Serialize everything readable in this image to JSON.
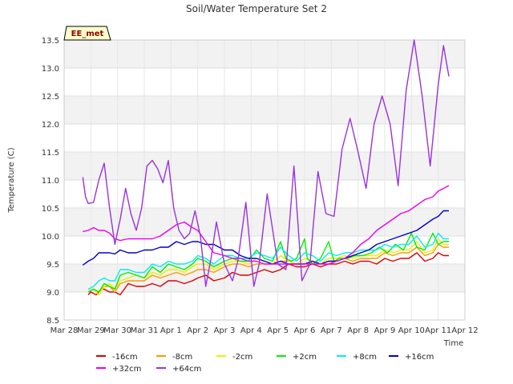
{
  "chart_data": {
    "type": "line",
    "title": "Soil/Water Temperature Set 2",
    "xlabel": "Time",
    "ylabel": "Temperature (C)",
    "badge": "EE_met",
    "xlim": [
      0,
      15
    ],
    "ylim": [
      8.5,
      13.5
    ],
    "x_ticks": [
      {
        "value": 0,
        "label": "Mar 28"
      },
      {
        "value": 1,
        "label": "Mar 29"
      },
      {
        "value": 2,
        "label": "Mar 30"
      },
      {
        "value": 3,
        "label": "Mar 31"
      },
      {
        "value": 4,
        "label": "Apr 1"
      },
      {
        "value": 5,
        "label": "Apr 2"
      },
      {
        "value": 6,
        "label": "Apr 3"
      },
      {
        "value": 7,
        "label": "Apr 4"
      },
      {
        "value": 8,
        "label": "Apr 5"
      },
      {
        "value": 9,
        "label": "Apr 6"
      },
      {
        "value": 10,
        "label": "Apr 7"
      },
      {
        "value": 11,
        "label": "Apr 8"
      },
      {
        "value": 12,
        "label": "Apr 9"
      },
      {
        "value": 13,
        "label": "Apr 10"
      },
      {
        "value": 14,
        "label": "Apr 11"
      },
      {
        "value": 15,
        "label": "Apr 12"
      }
    ],
    "y_ticks": [
      8.5,
      9.0,
      9.5,
      10.0,
      10.5,
      11.0,
      11.5,
      12.0,
      12.5,
      13.0,
      13.5
    ],
    "grid": true,
    "legend_position": "bottom",
    "series": [
      {
        "name": "-16cm",
        "color": "#dd0000",
        "x": [
          0.9,
          1.0,
          1.2,
          1.4,
          1.5,
          1.7,
          1.9,
          2.1,
          2.4,
          2.7,
          3.0,
          3.3,
          3.6,
          3.9,
          4.2,
          4.5,
          4.8,
          5.0,
          5.3,
          5.6,
          6.0,
          6.3,
          6.6,
          6.9,
          7.2,
          7.5,
          7.8,
          8.1,
          8.4,
          8.7,
          9.0,
          9.3,
          9.6,
          9.9,
          10.2,
          10.5,
          10.8,
          11.1,
          11.4,
          11.7,
          12.0,
          12.3,
          12.6,
          12.9,
          13.2,
          13.5,
          13.8,
          14.0,
          14.2,
          14.4
        ],
        "y": [
          8.95,
          9.0,
          8.95,
          9.05,
          9.05,
          9.0,
          9.0,
          8.95,
          9.15,
          9.1,
          9.1,
          9.15,
          9.1,
          9.2,
          9.2,
          9.15,
          9.2,
          9.25,
          9.3,
          9.2,
          9.25,
          9.35,
          9.3,
          9.3,
          9.35,
          9.4,
          9.35,
          9.4,
          9.5,
          9.45,
          9.45,
          9.5,
          9.45,
          9.5,
          9.5,
          9.55,
          9.5,
          9.55,
          9.55,
          9.5,
          9.6,
          9.55,
          9.6,
          9.6,
          9.7,
          9.55,
          9.6,
          9.7,
          9.65,
          9.65
        ]
      },
      {
        "name": "-8cm",
        "color": "#ff9900",
        "x": [
          0.9,
          1.1,
          1.3,
          1.5,
          1.7,
          1.9,
          2.1,
          2.4,
          2.7,
          3.0,
          3.3,
          3.6,
          3.9,
          4.2,
          4.5,
          4.8,
          5.0,
          5.3,
          5.6,
          6.0,
          6.3,
          6.6,
          6.9,
          7.2,
          7.5,
          7.8,
          8.1,
          8.4,
          8.7,
          9.0,
          9.3,
          9.6,
          9.9,
          10.2,
          10.5,
          10.8,
          11.1,
          11.4,
          11.7,
          12.0,
          12.3,
          12.6,
          12.9,
          13.2,
          13.5,
          13.8,
          14.0,
          14.2,
          14.4
        ],
        "y": [
          9.0,
          9.05,
          9.0,
          9.1,
          9.1,
          9.0,
          9.15,
          9.2,
          9.2,
          9.2,
          9.3,
          9.25,
          9.3,
          9.35,
          9.3,
          9.35,
          9.4,
          9.4,
          9.35,
          9.45,
          9.5,
          9.5,
          9.45,
          9.5,
          9.5,
          9.5,
          9.55,
          9.55,
          9.5,
          9.5,
          9.55,
          9.5,
          9.55,
          9.55,
          9.6,
          9.55,
          9.6,
          9.6,
          9.6,
          9.7,
          9.65,
          9.7,
          9.7,
          9.8,
          9.65,
          9.7,
          9.85,
          9.8,
          9.8
        ]
      },
      {
        "name": "-2cm",
        "color": "#eeee00",
        "x": [
          0.9,
          1.1,
          1.3,
          1.5,
          1.7,
          1.9,
          2.1,
          2.4,
          2.7,
          3.0,
          3.3,
          3.6,
          3.9,
          4.2,
          4.5,
          4.8,
          5.0,
          5.3,
          5.6,
          6.0,
          6.3,
          6.6,
          6.9,
          7.2,
          7.5,
          7.8,
          8.1,
          8.4,
          8.7,
          9.0,
          9.3,
          9.6,
          9.9,
          10.2,
          10.5,
          10.8,
          11.1,
          11.4,
          11.7,
          12.0,
          12.3,
          12.6,
          12.9,
          13.2,
          13.5,
          13.8,
          14.0,
          14.2,
          14.4
        ],
        "y": [
          9.0,
          9.05,
          8.95,
          9.1,
          9.15,
          9.05,
          9.2,
          9.25,
          9.3,
          9.25,
          9.35,
          9.3,
          9.4,
          9.4,
          9.35,
          9.45,
          9.5,
          9.5,
          9.4,
          9.5,
          9.55,
          9.55,
          9.5,
          9.6,
          9.55,
          9.5,
          9.65,
          9.55,
          9.5,
          9.6,
          9.55,
          9.5,
          9.6,
          9.6,
          9.65,
          9.6,
          9.65,
          9.65,
          9.65,
          9.75,
          9.7,
          9.75,
          9.75,
          9.9,
          9.7,
          9.75,
          9.95,
          9.85,
          9.85
        ]
      },
      {
        "name": "+2cm",
        "color": "#00ee00",
        "x": [
          0.9,
          1.1,
          1.3,
          1.5,
          1.7,
          1.9,
          2.1,
          2.4,
          2.7,
          3.0,
          3.3,
          3.6,
          3.9,
          4.2,
          4.5,
          4.8,
          5.0,
          5.3,
          5.6,
          6.0,
          6.3,
          6.6,
          6.9,
          7.2,
          7.5,
          7.8,
          8.1,
          8.3,
          8.5,
          8.7,
          9.0,
          9.1,
          9.3,
          9.6,
          9.9,
          10.1,
          10.3,
          10.6,
          10.9,
          11.2,
          11.5,
          11.8,
          12.1,
          12.4,
          12.7,
          13.0,
          13.2,
          13.5,
          13.8,
          14.0,
          14.2,
          14.4
        ],
        "y": [
          9.0,
          9.05,
          9.0,
          9.15,
          9.1,
          9.05,
          9.3,
          9.35,
          9.3,
          9.25,
          9.45,
          9.35,
          9.5,
          9.45,
          9.4,
          9.5,
          9.6,
          9.55,
          9.45,
          9.55,
          9.6,
          9.55,
          9.55,
          9.75,
          9.6,
          9.55,
          9.9,
          9.6,
          9.55,
          9.6,
          9.95,
          9.6,
          9.5,
          9.6,
          9.9,
          9.55,
          9.6,
          9.6,
          9.65,
          9.65,
          9.7,
          9.8,
          9.7,
          9.85,
          9.75,
          10.05,
          9.8,
          9.75,
          10.05,
          9.85,
          9.9,
          9.9
        ]
      },
      {
        "name": "+8cm",
        "color": "#00eeee",
        "x": [
          0.9,
          1.1,
          1.3,
          1.5,
          1.7,
          1.9,
          2.1,
          2.4,
          2.7,
          3.0,
          3.3,
          3.6,
          3.9,
          4.2,
          4.5,
          4.8,
          5.0,
          5.3,
          5.6,
          6.0,
          6.3,
          6.6,
          6.9,
          7.2,
          7.5,
          7.8,
          8.1,
          8.4,
          8.7,
          9.0,
          9.3,
          9.6,
          9.9,
          10.2,
          10.5,
          10.8,
          11.1,
          11.4,
          11.7,
          12.0,
          12.3,
          12.6,
          12.9,
          13.2,
          13.5,
          13.8,
          14.0,
          14.2,
          14.4
        ],
        "y": [
          9.05,
          9.1,
          9.2,
          9.25,
          9.2,
          9.2,
          9.4,
          9.4,
          9.35,
          9.35,
          9.5,
          9.45,
          9.55,
          9.5,
          9.5,
          9.55,
          9.65,
          9.6,
          9.5,
          9.65,
          9.65,
          9.6,
          9.6,
          9.7,
          9.65,
          9.6,
          9.8,
          9.65,
          9.55,
          9.7,
          9.65,
          9.55,
          9.7,
          9.65,
          9.7,
          9.7,
          9.75,
          9.75,
          9.75,
          9.85,
          9.8,
          9.85,
          9.85,
          10.0,
          9.8,
          9.85,
          10.05,
          9.95,
          9.95
        ]
      },
      {
        "name": "+16cm",
        "color": "#0000cc",
        "x": [
          0.7,
          0.9,
          1.1,
          1.3,
          1.5,
          1.7,
          1.9,
          2.1,
          2.4,
          2.7,
          3.0,
          3.3,
          3.6,
          3.9,
          4.2,
          4.5,
          4.8,
          5.0,
          5.3,
          5.6,
          6.0,
          6.3,
          6.6,
          6.9,
          7.2,
          7.5,
          7.8,
          8.1,
          8.4,
          8.7,
          9.0,
          9.3,
          9.6,
          9.9,
          10.2,
          10.5,
          10.8,
          11.1,
          11.4,
          11.7,
          12.0,
          12.3,
          12.6,
          12.9,
          13.2,
          13.5,
          13.8,
          14.0,
          14.2,
          14.4
        ],
        "y": [
          9.48,
          9.55,
          9.6,
          9.7,
          9.7,
          9.7,
          9.68,
          9.75,
          9.7,
          9.7,
          9.75,
          9.75,
          9.8,
          9.8,
          9.9,
          9.85,
          9.9,
          9.9,
          9.85,
          9.85,
          9.75,
          9.75,
          9.65,
          9.6,
          9.6,
          9.55,
          9.5,
          9.55,
          9.5,
          9.5,
          9.5,
          9.55,
          9.5,
          9.55,
          9.55,
          9.6,
          9.65,
          9.7,
          9.75,
          9.85,
          9.9,
          9.95,
          10.0,
          10.05,
          10.1,
          10.2,
          10.3,
          10.35,
          10.45,
          10.45
        ]
      },
      {
        "name": "+32cm",
        "color": "#ee00ee",
        "x": [
          0.7,
          0.9,
          1.1,
          1.3,
          1.5,
          1.7,
          1.9,
          2.1,
          2.4,
          2.7,
          3.0,
          3.3,
          3.6,
          3.9,
          4.2,
          4.5,
          4.8,
          5.0,
          5.3,
          5.6,
          6.0,
          6.3,
          6.6,
          6.9,
          7.2,
          7.5,
          7.8,
          8.1,
          8.4,
          8.7,
          9.0,
          9.3,
          9.6,
          9.9,
          10.2,
          10.5,
          10.8,
          11.1,
          11.4,
          11.7,
          12.0,
          12.3,
          12.6,
          12.9,
          13.2,
          13.5,
          13.8,
          14.0,
          14.2,
          14.4
        ],
        "y": [
          10.08,
          10.1,
          10.15,
          10.1,
          10.1,
          10.05,
          9.95,
          9.92,
          9.95,
          9.95,
          9.95,
          9.95,
          10.0,
          10.1,
          10.2,
          10.25,
          10.15,
          10.1,
          9.9,
          9.7,
          9.65,
          9.6,
          9.6,
          9.55,
          9.55,
          9.5,
          9.5,
          9.5,
          9.5,
          9.5,
          9.5,
          9.5,
          9.5,
          9.5,
          9.55,
          9.6,
          9.7,
          9.85,
          9.95,
          10.1,
          10.2,
          10.3,
          10.4,
          10.45,
          10.55,
          10.65,
          10.7,
          10.8,
          10.85,
          10.9
        ]
      },
      {
        "name": "+64cm",
        "color": "#9933dd",
        "x": [
          0.7,
          0.8,
          0.9,
          1.1,
          1.3,
          1.5,
          1.7,
          1.9,
          2.1,
          2.3,
          2.5,
          2.7,
          2.9,
          3.1,
          3.3,
          3.5,
          3.7,
          3.9,
          4.1,
          4.3,
          4.5,
          4.7,
          4.9,
          5.1,
          5.3,
          5.5,
          5.7,
          6.0,
          6.3,
          6.5,
          6.8,
          7.1,
          7.3,
          7.6,
          8.0,
          8.3,
          8.6,
          8.9,
          9.2,
          9.5,
          9.8,
          10.1,
          10.4,
          10.7,
          11.0,
          11.3,
          11.6,
          11.9,
          12.2,
          12.5,
          12.8,
          13.1,
          13.4,
          13.7,
          14.0,
          14.2,
          14.4
        ],
        "y": [
          11.05,
          10.7,
          10.58,
          10.6,
          11.0,
          11.3,
          10.5,
          9.85,
          10.3,
          10.85,
          10.4,
          10.1,
          10.5,
          11.25,
          11.35,
          11.2,
          10.95,
          11.35,
          10.5,
          10.1,
          9.95,
          10.05,
          10.45,
          10.0,
          9.1,
          9.6,
          10.25,
          9.5,
          9.2,
          9.55,
          10.6,
          9.1,
          9.5,
          10.75,
          9.5,
          9.4,
          11.25,
          9.2,
          9.5,
          11.15,
          10.4,
          10.35,
          11.55,
          12.1,
          11.5,
          10.85,
          12.0,
          12.5,
          12.0,
          10.9,
          12.6,
          13.5,
          12.5,
          11.25,
          12.7,
          13.4,
          12.85
        ]
      }
    ]
  }
}
